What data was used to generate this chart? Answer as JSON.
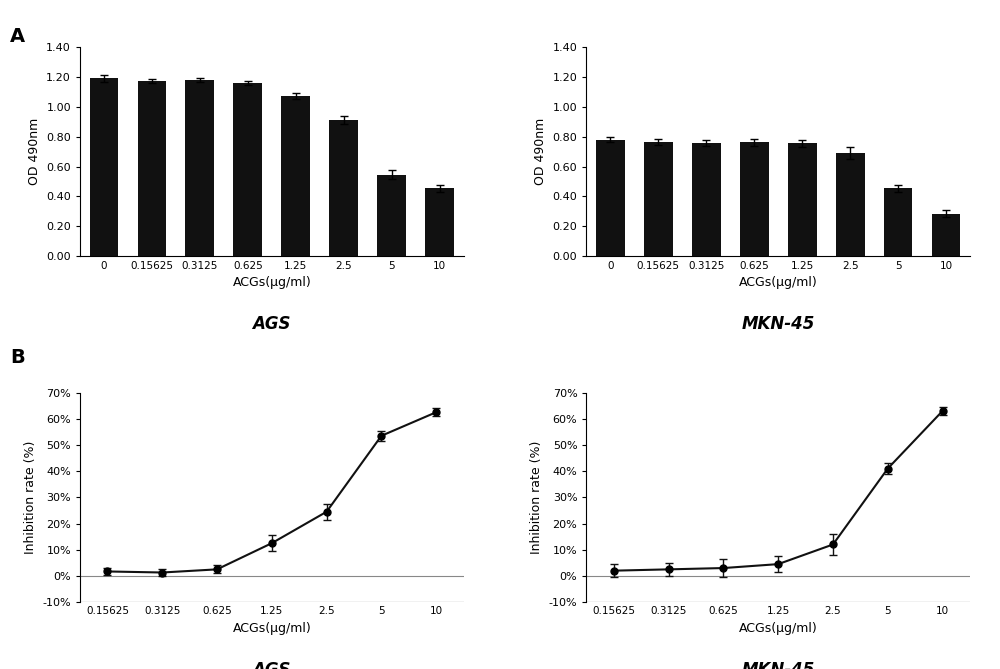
{
  "bar_categories": [
    "0",
    "0.15625",
    "0.3125",
    "0.625",
    "1.25",
    "2.5",
    "5",
    "10"
  ],
  "ags_bar_values": [
    1.19,
    1.17,
    1.18,
    1.16,
    1.07,
    0.91,
    0.545,
    0.455
  ],
  "ags_bar_errors": [
    0.025,
    0.015,
    0.015,
    0.015,
    0.02,
    0.025,
    0.03,
    0.025
  ],
  "mkn_bar_values": [
    0.78,
    0.765,
    0.755,
    0.762,
    0.755,
    0.69,
    0.455,
    0.285
  ],
  "mkn_bar_errors": [
    0.015,
    0.02,
    0.02,
    0.025,
    0.025,
    0.04,
    0.025,
    0.025
  ],
  "line_categories": [
    "0.15625",
    "0.3125",
    "0.625",
    "1.25",
    "2.5",
    "5",
    "10"
  ],
  "ags_line_values": [
    0.017,
    0.013,
    0.025,
    0.125,
    0.245,
    0.535,
    0.625
  ],
  "ags_line_errors": [
    0.015,
    0.015,
    0.015,
    0.03,
    0.03,
    0.02,
    0.015
  ],
  "mkn_line_values": [
    0.02,
    0.025,
    0.03,
    0.045,
    0.12,
    0.41,
    0.63
  ],
  "mkn_line_errors": [
    0.025,
    0.025,
    0.035,
    0.03,
    0.04,
    0.02,
    0.015
  ],
  "bar_ylabel": "OD 490nm",
  "bar_xlabel": "ACGs(μg/ml)",
  "line_ylabel": "Inhibition rate (%)",
  "line_xlabel": "ACGs(μg/ml)",
  "ags_title": "AGS",
  "mkn_title": "MKN-45",
  "panel_a_label": "A",
  "panel_b_label": "B",
  "bar_ylim": [
    0,
    1.4
  ],
  "bar_yticks": [
    0.0,
    0.2,
    0.4,
    0.6,
    0.8,
    1.0,
    1.2,
    1.4
  ],
  "line_ylim": [
    -0.1,
    0.7
  ],
  "line_yticks": [
    -0.1,
    0.0,
    0.1,
    0.2,
    0.3,
    0.4,
    0.5,
    0.6,
    0.7
  ],
  "bar_color": "#111111",
  "line_color": "#111111",
  "bg_color": "#ffffff"
}
